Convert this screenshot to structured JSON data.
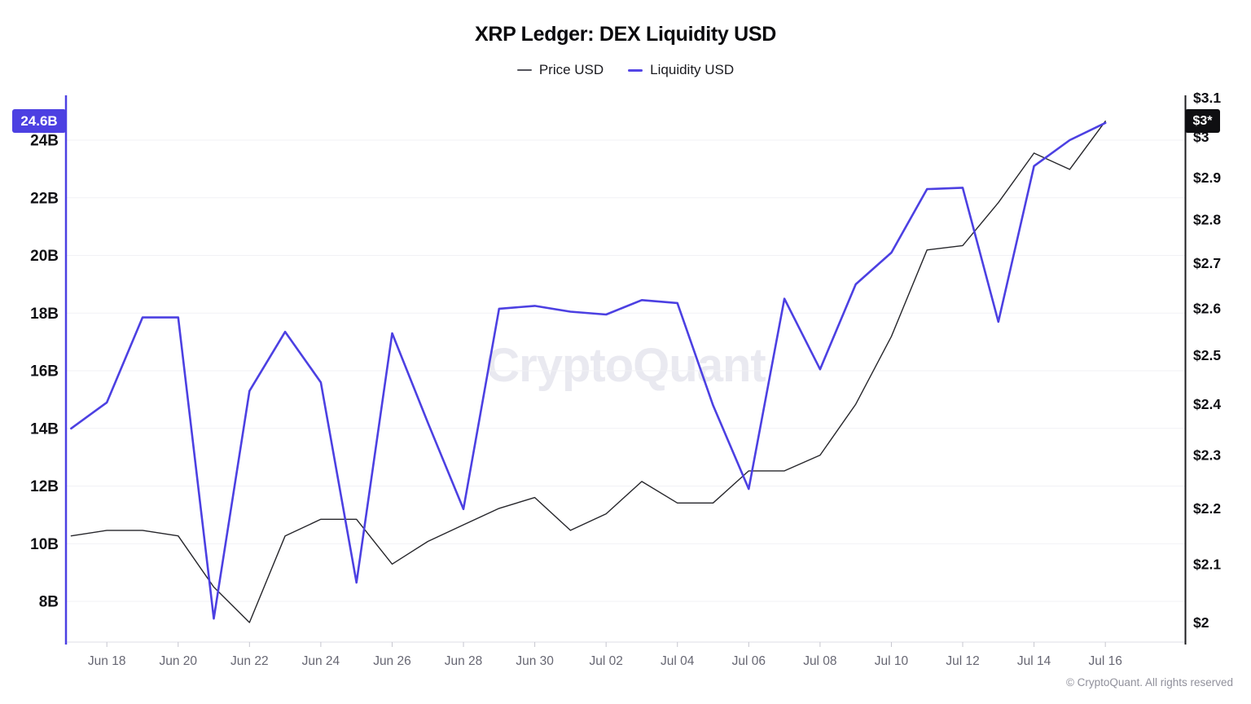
{
  "title": "XRP Ledger: DEX Liquidity USD",
  "watermark": "CryptoQuant",
  "copyright": "© CryptoQuant. All rights reserved",
  "legend": [
    {
      "label": "Price USD",
      "color": "#54545c"
    },
    {
      "label": "Liquidity USD",
      "color": "#5345e6"
    }
  ],
  "badges": {
    "liquidity_last": "24.6B",
    "price_last": "$3*"
  },
  "colors": {
    "accent_liquidity": "#4c40e2",
    "price_line": "#26262b",
    "badge_price_bg": "#0f0f12",
    "left_axis_line": "#4c40e2",
    "right_axis_line": "#1b1b1f",
    "gridline": "#f1f1f5",
    "bottom_line": "#dedee4",
    "tick_mark": "#c6c6cf"
  },
  "chart_data": {
    "type": "line",
    "x": [
      "Jun 17",
      "Jun 18",
      "Jun 19",
      "Jun 20",
      "Jun 21",
      "Jun 22",
      "Jun 23",
      "Jun 24",
      "Jun 25",
      "Jun 26",
      "Jun 27",
      "Jun 28",
      "Jun 29",
      "Jun 30",
      "Jul 01",
      "Jul 02",
      "Jul 03",
      "Jul 04",
      "Jul 05",
      "Jul 06",
      "Jul 07",
      "Jul 08",
      "Jul 09",
      "Jul 10",
      "Jul 11",
      "Jul 12",
      "Jul 13",
      "Jul 14",
      "Jul 15",
      "Jul 16"
    ],
    "series": [
      {
        "name": "Price USD",
        "axis": "right",
        "unit": "USD",
        "color": "#26262b",
        "values": [
          2.15,
          2.16,
          2.16,
          2.15,
          2.06,
          2.0,
          2.15,
          2.18,
          2.18,
          2.1,
          2.14,
          2.17,
          2.2,
          2.22,
          2.16,
          2.19,
          2.25,
          2.21,
          2.21,
          2.27,
          2.27,
          2.3,
          2.4,
          2.54,
          2.73,
          2.74,
          2.84,
          2.96,
          2.92,
          3.04
        ]
      },
      {
        "name": "Liquidity USD",
        "axis": "left",
        "unit": "B USD",
        "color": "#4c40e2",
        "values": [
          14.0,
          14.9,
          17.85,
          17.85,
          7.4,
          15.3,
          17.35,
          15.6,
          8.65,
          17.3,
          14.2,
          11.2,
          18.15,
          18.25,
          18.05,
          17.95,
          18.45,
          18.35,
          14.8,
          11.9,
          18.5,
          16.05,
          19.0,
          20.1,
          22.3,
          22.35,
          17.7,
          23.1,
          24.0,
          24.6
        ]
      }
    ],
    "left_axis": {
      "scale": "linear",
      "ticks": [
        "24B",
        "22B",
        "20B",
        "18B",
        "16B",
        "14B",
        "12B",
        "10B",
        "8B"
      ],
      "tick_values": [
        24,
        22,
        20,
        18,
        16,
        14,
        12,
        10,
        8
      ],
      "last_value_label": "24.6B"
    },
    "right_axis": {
      "scale": "log",
      "ticks": [
        "$3.1",
        "$3",
        "$2.9",
        "$2.8",
        "$2.7",
        "$2.6",
        "$2.5",
        "$2.4",
        "$2.3",
        "$2.2",
        "$2.1",
        "$2"
      ],
      "tick_values": [
        3.1,
        3.0,
        2.9,
        2.8,
        2.7,
        2.6,
        2.5,
        2.4,
        2.3,
        2.2,
        2.1,
        2.0
      ],
      "last_value_label": "$3*"
    },
    "x_ticks": [
      "Jun 18",
      "Jun 20",
      "Jun 22",
      "Jun 24",
      "Jun 26",
      "Jun 28",
      "Jun 30",
      "Jul 02",
      "Jul 04",
      "Jul 06",
      "Jul 08",
      "Jul 10",
      "Jul 12",
      "Jul 14",
      "Jul 16"
    ],
    "grid": "horizontal",
    "legend_position": "top"
  }
}
